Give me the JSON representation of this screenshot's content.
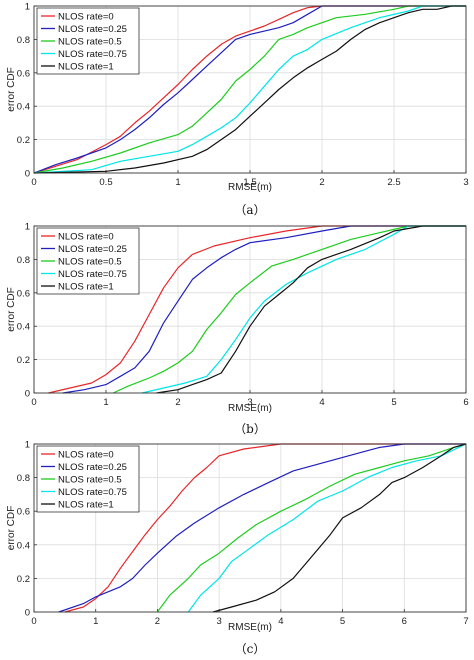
{
  "chart_data": [
    {
      "type": "line",
      "caption": "（a）",
      "xlabel": "RMSE(m)",
      "ylabel": "error CDF",
      "xlim": [
        0,
        3
      ],
      "ylim": [
        0,
        1
      ],
      "xticks": [
        "0",
        "0.5",
        "1",
        "1.5",
        "2",
        "2.5",
        "3"
      ],
      "yticks": [
        "0",
        "0.2",
        "0.4",
        "0.6",
        "0.8",
        "1"
      ],
      "grid": true,
      "legend_position": "top-left",
      "series": [
        {
          "name": "NLOS rate=0",
          "color": "#e8262a",
          "x": [
            0,
            0.15,
            0.3,
            0.5,
            0.6,
            0.7,
            0.8,
            0.9,
            1.0,
            1.1,
            1.2,
            1.3,
            1.4,
            1.5,
            1.6,
            1.7,
            1.8,
            1.9,
            2.0,
            2.2,
            3.0
          ],
          "y": [
            0,
            0.04,
            0.08,
            0.17,
            0.22,
            0.3,
            0.37,
            0.45,
            0.53,
            0.62,
            0.7,
            0.77,
            0.82,
            0.85,
            0.88,
            0.92,
            0.96,
            0.99,
            1.0,
            1.0,
            1.0
          ]
        },
        {
          "name": "NLOS rate=0.25",
          "color": "#1f1fbf",
          "x": [
            0,
            0.15,
            0.3,
            0.5,
            0.6,
            0.7,
            0.8,
            0.9,
            1.0,
            1.1,
            1.2,
            1.3,
            1.4,
            1.5,
            1.6,
            1.7,
            1.8,
            1.9,
            2.0,
            3.0
          ],
          "y": [
            0,
            0.05,
            0.09,
            0.15,
            0.2,
            0.26,
            0.33,
            0.41,
            0.48,
            0.56,
            0.64,
            0.72,
            0.8,
            0.83,
            0.85,
            0.87,
            0.9,
            0.95,
            1.0,
            1.0
          ]
        },
        {
          "name": "NLOS rate=0.5",
          "color": "#1ecc1e",
          "x": [
            0,
            0.2,
            0.4,
            0.6,
            0.8,
            1.0,
            1.1,
            1.2,
            1.3,
            1.4,
            1.5,
            1.6,
            1.7,
            1.8,
            1.9,
            2.0,
            2.1,
            2.3,
            2.5,
            2.6,
            3.0
          ],
          "y": [
            0,
            0.03,
            0.07,
            0.12,
            0.18,
            0.23,
            0.28,
            0.36,
            0.44,
            0.55,
            0.62,
            0.7,
            0.8,
            0.83,
            0.87,
            0.9,
            0.93,
            0.95,
            0.98,
            1.0,
            1.0
          ]
        },
        {
          "name": "NLOS rate=0.75",
          "color": "#00e5e5",
          "x": [
            0,
            0.4,
            0.6,
            0.8,
            1.0,
            1.1,
            1.2,
            1.3,
            1.4,
            1.5,
            1.6,
            1.7,
            1.8,
            1.9,
            2.0,
            2.2,
            2.4,
            2.6,
            2.7,
            3.0
          ],
          "y": [
            0,
            0.02,
            0.07,
            0.1,
            0.13,
            0.17,
            0.22,
            0.27,
            0.33,
            0.42,
            0.52,
            0.62,
            0.7,
            0.74,
            0.8,
            0.87,
            0.93,
            0.97,
            1.0,
            1.0
          ]
        },
        {
          "name": "NLOS rate=1",
          "color": "#111111",
          "x": [
            0,
            0.5,
            0.7,
            0.9,
            1.1,
            1.2,
            1.3,
            1.4,
            1.5,
            1.6,
            1.7,
            1.8,
            1.9,
            2.0,
            2.1,
            2.2,
            2.3,
            2.4,
            2.5,
            2.6,
            2.7,
            2.8,
            2.9,
            3.0
          ],
          "y": [
            0,
            0.01,
            0.03,
            0.06,
            0.1,
            0.14,
            0.2,
            0.26,
            0.34,
            0.42,
            0.5,
            0.57,
            0.63,
            0.68,
            0.73,
            0.8,
            0.86,
            0.9,
            0.93,
            0.96,
            0.98,
            0.98,
            1.0,
            1.0
          ]
        }
      ]
    },
    {
      "type": "line",
      "caption": "（b）",
      "xlabel": "RMSE(m)",
      "ylabel": "error CDF",
      "xlim": [
        0,
        6
      ],
      "ylim": [
        0,
        1
      ],
      "xticks": [
        "0",
        "1",
        "2",
        "3",
        "4",
        "5",
        "6"
      ],
      "yticks": [
        "0",
        "0.2",
        "0.4",
        "0.6",
        "0.8",
        "1"
      ],
      "grid": true,
      "legend_position": "top-left",
      "series": [
        {
          "name": "NLOS rate=0",
          "color": "#e8262a",
          "x": [
            0.2,
            0.5,
            0.8,
            1.0,
            1.2,
            1.4,
            1.6,
            1.8,
            2.0,
            2.2,
            2.5,
            3.0,
            3.5,
            4.0,
            6.0
          ],
          "y": [
            0,
            0.03,
            0.06,
            0.11,
            0.18,
            0.31,
            0.47,
            0.63,
            0.75,
            0.83,
            0.88,
            0.93,
            0.97,
            1.0,
            1.0
          ]
        },
        {
          "name": "NLOS rate=0.25",
          "color": "#1f1fbf",
          "x": [
            0.4,
            0.7,
            1.0,
            1.2,
            1.4,
            1.6,
            1.8,
            2.0,
            2.2,
            2.4,
            2.6,
            2.8,
            3.0,
            3.5,
            4.0,
            4.4,
            6.0
          ],
          "y": [
            0,
            0.02,
            0.05,
            0.1,
            0.15,
            0.25,
            0.42,
            0.55,
            0.68,
            0.75,
            0.81,
            0.86,
            0.9,
            0.93,
            0.97,
            1.0,
            1.0
          ]
        },
        {
          "name": "NLOS rate=0.5",
          "color": "#1ecc1e",
          "x": [
            1.1,
            1.3,
            1.6,
            1.8,
            2.0,
            2.2,
            2.4,
            2.6,
            2.8,
            3.0,
            3.3,
            3.6,
            4.0,
            4.4,
            4.8,
            5.2,
            6.0
          ],
          "y": [
            0,
            0.04,
            0.09,
            0.13,
            0.18,
            0.25,
            0.38,
            0.48,
            0.59,
            0.66,
            0.76,
            0.8,
            0.86,
            0.92,
            0.96,
            1.0,
            1.0
          ]
        },
        {
          "name": "NLOS rate=0.75",
          "color": "#00e5e5",
          "x": [
            1.5,
            1.8,
            2.1,
            2.4,
            2.6,
            2.8,
            3.0,
            3.2,
            3.5,
            3.8,
            4.2,
            4.6,
            5.0,
            5.2,
            6.0
          ],
          "y": [
            0,
            0.03,
            0.06,
            0.1,
            0.2,
            0.32,
            0.45,
            0.55,
            0.65,
            0.72,
            0.8,
            0.86,
            0.95,
            1.0,
            1.0
          ]
        },
        {
          "name": "NLOS rate=1",
          "color": "#111111",
          "x": [
            1.7,
            2.0,
            2.2,
            2.4,
            2.6,
            2.8,
            3.0,
            3.2,
            3.4,
            3.6,
            3.8,
            4.0,
            4.4,
            4.8,
            5.0,
            5.4,
            6.0
          ],
          "y": [
            0,
            0.02,
            0.05,
            0.08,
            0.12,
            0.25,
            0.4,
            0.52,
            0.59,
            0.66,
            0.75,
            0.8,
            0.86,
            0.93,
            0.97,
            1.0,
            1.0
          ]
        }
      ]
    },
    {
      "type": "line",
      "caption": "（c）",
      "xlabel": "RMSE(m)",
      "ylabel": "error CDF",
      "xlim": [
        0,
        7
      ],
      "ylim": [
        0,
        1
      ],
      "xticks": [
        "0",
        "1",
        "2",
        "3",
        "4",
        "5",
        "6",
        "7"
      ],
      "yticks": [
        "0",
        "0.2",
        "0.4",
        "0.6",
        "0.8",
        "1"
      ],
      "grid": true,
      "legend_position": "top-left",
      "series": [
        {
          "name": "NLOS rate=0",
          "color": "#e8262a",
          "x": [
            0.5,
            0.8,
            1.0,
            1.2,
            1.4,
            1.6,
            1.8,
            2.0,
            2.2,
            2.4,
            2.6,
            2.8,
            3.0,
            3.4,
            4.0,
            7.0
          ],
          "y": [
            0,
            0.03,
            0.08,
            0.15,
            0.26,
            0.36,
            0.46,
            0.55,
            0.63,
            0.72,
            0.8,
            0.86,
            0.93,
            0.97,
            1.0,
            1.0
          ]
        },
        {
          "name": "NLOS rate=0.25",
          "color": "#1f1fbf",
          "x": [
            0.4,
            0.8,
            1.0,
            1.2,
            1.4,
            1.6,
            1.8,
            2.0,
            2.3,
            2.6,
            3.0,
            3.4,
            3.8,
            4.2,
            4.6,
            5.0,
            5.4,
            5.6,
            6.0,
            7.0
          ],
          "y": [
            0,
            0.05,
            0.09,
            0.12,
            0.15,
            0.2,
            0.28,
            0.35,
            0.45,
            0.53,
            0.62,
            0.7,
            0.77,
            0.84,
            0.88,
            0.92,
            0.96,
            0.98,
            1.0,
            1.0
          ]
        },
        {
          "name": "NLOS rate=0.5",
          "color": "#1ecc1e",
          "x": [
            2.0,
            2.2,
            2.5,
            2.7,
            3.0,
            3.3,
            3.6,
            4.0,
            4.4,
            4.8,
            5.2,
            5.6,
            6.0,
            6.4,
            6.8,
            7.0
          ],
          "y": [
            0,
            0.1,
            0.2,
            0.28,
            0.35,
            0.44,
            0.52,
            0.6,
            0.67,
            0.75,
            0.82,
            0.86,
            0.9,
            0.93,
            0.98,
            1.0
          ]
        },
        {
          "name": "NLOS rate=0.75",
          "color": "#00e5e5",
          "x": [
            2.5,
            2.7,
            3.0,
            3.2,
            3.5,
            3.8,
            4.2,
            4.6,
            5.0,
            5.4,
            5.8,
            6.2,
            6.6,
            7.0
          ],
          "y": [
            0,
            0.1,
            0.2,
            0.3,
            0.38,
            0.46,
            0.55,
            0.66,
            0.72,
            0.8,
            0.86,
            0.9,
            0.93,
            1.0
          ]
        },
        {
          "name": "NLOS rate=1",
          "color": "#111111",
          "x": [
            2.9,
            3.2,
            3.6,
            3.9,
            4.2,
            4.5,
            4.8,
            5.0,
            5.3,
            5.6,
            5.8,
            6.0,
            6.3,
            6.6,
            6.8,
            7.0
          ],
          "y": [
            0,
            0.03,
            0.07,
            0.12,
            0.2,
            0.33,
            0.46,
            0.56,
            0.62,
            0.7,
            0.77,
            0.8,
            0.86,
            0.93,
            0.98,
            1.0
          ]
        }
      ]
    }
  ]
}
